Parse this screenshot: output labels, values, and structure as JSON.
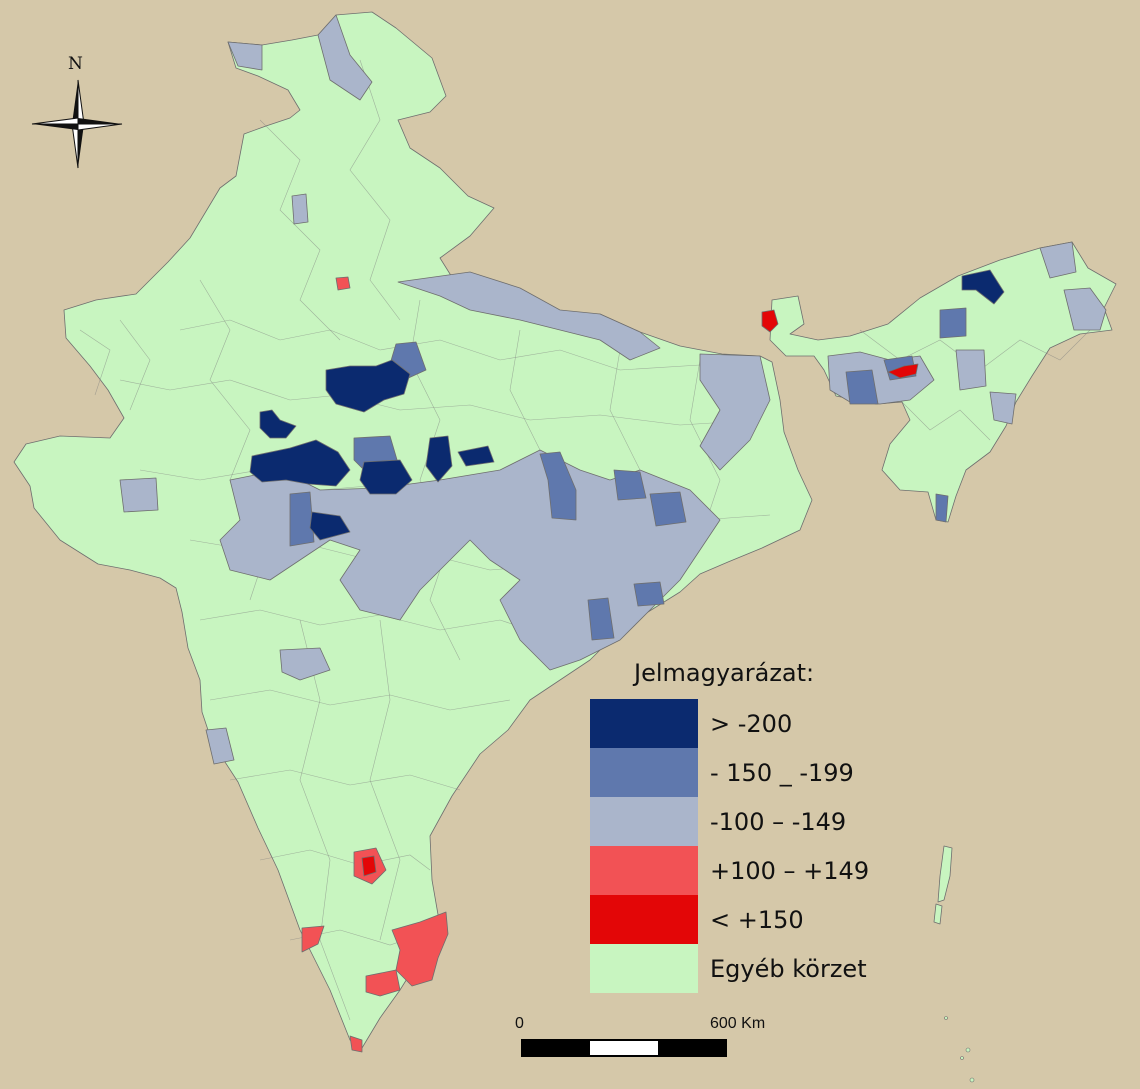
{
  "map": {
    "north_label": "N",
    "legend": {
      "title": "Jelmagyarázat:",
      "items": [
        {
          "label": "> -200",
          "color": "#0b2a6f"
        },
        {
          "label": "- 150 _ -199",
          "color": "#5f78ad"
        },
        {
          "label": "-100 – -149",
          "color": "#aab5cb"
        },
        {
          "label": "+100 – +149",
          "color": "#f25255"
        },
        {
          "label": "< +150",
          "color": "#e30607"
        },
        {
          "label": "Egyéb körzet",
          "color": "#c8f5c0"
        }
      ]
    },
    "scale_bar": {
      "start_label": "0",
      "end_label": "600 Km"
    },
    "colors": {
      "background": "#d5c8a9",
      "other_district": "#c8f5c0",
      "boundary": "#6e6e6e"
    }
  }
}
